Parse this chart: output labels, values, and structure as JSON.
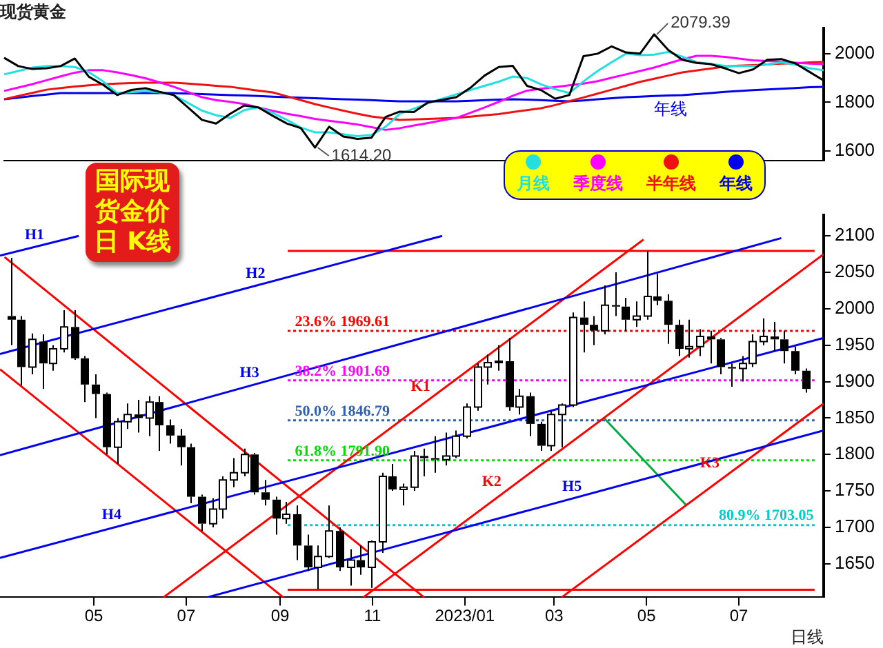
{
  "chart_data": [
    {
      "type": "line",
      "title": "现货黄金",
      "categories": [
        null,
        null,
        null,
        null,
        null,
        null,
        null,
        null,
        null,
        null,
        null,
        null,
        null,
        null,
        null,
        null,
        null,
        null,
        null,
        null,
        null,
        null,
        null,
        null,
        null,
        null,
        null,
        null,
        null,
        null,
        null,
        null,
        null,
        null,
        null,
        null,
        null,
        null,
        null,
        null,
        null,
        null,
        null,
        null,
        null,
        null,
        null,
        null,
        null,
        null,
        null,
        null,
        null,
        null,
        null,
        null,
        null,
        null,
        null
      ],
      "ylim": [
        1560,
        2105
      ],
      "yticks": [
        1600,
        1800,
        2000
      ],
      "marker": "none",
      "legend": "bottom right",
      "annotations": [
        "2079.39",
        "1614.20",
        "年线"
      ],
      "series": [
        {
          "color": "#000000",
          "values": [
            1983,
            1949,
            1937,
            1940,
            1949,
            1980,
            1905,
            1872,
            1830,
            1851,
            1858,
            1843,
            1830,
            1780,
            1728,
            1713,
            1753,
            1787,
            1779,
            1745,
            1713,
            1694,
            1614.2,
            1700,
            1660,
            1650,
            1655,
            1740,
            1762,
            1760,
            1800,
            1810,
            1821,
            1860,
            1910,
            1945,
            1950,
            1868,
            1850,
            1815,
            1830,
            1990,
            2000,
            2030,
            2005,
            2000,
            2079.39,
            2015,
            1975,
            1962,
            1957,
            1940,
            1920,
            1935,
            1975,
            1978,
            1960,
            1925,
            1890
          ]
        },
        {
          "name": "月线",
          "color": "#22e0e0",
          "values": [
            1915,
            1929,
            1943,
            1949,
            1949,
            1945,
            1924,
            1886,
            1838,
            1842,
            1846,
            1841,
            1830,
            1798,
            1766,
            1747,
            1736,
            1768,
            1779,
            1757,
            1728,
            1696,
            1677,
            1677,
            1669,
            1661,
            1666,
            1700,
            1753,
            1774,
            1796,
            1815,
            1833,
            1851,
            1868,
            1885,
            1906,
            1900,
            1874,
            1854,
            1838,
            1886,
            1929,
            1965,
            2000,
            1994,
            1996,
            2007,
            1988,
            1965,
            1958,
            1950,
            1949,
            1949,
            1956,
            1964,
            1955,
            1940,
            1932
          ]
        },
        {
          "name": "季度线",
          "color": "#ff00ff",
          "values": [
            1847,
            1861,
            1875,
            1891,
            1907,
            1922,
            1932,
            1932,
            1923,
            1912,
            1899,
            1882,
            1864,
            1843,
            1821,
            1809,
            1802,
            1793,
            1779,
            1765,
            1753,
            1743,
            1732,
            1724,
            1717,
            1709,
            1698,
            1687,
            1694,
            1705,
            1715,
            1726,
            1736,
            1757,
            1779,
            1802,
            1827,
            1848,
            1856,
            1863,
            1870,
            1877,
            1887,
            1901,
            1915,
            1929,
            1943,
            1960,
            1977,
            1991,
            1991,
            1987,
            1980,
            1973,
            1970,
            1967,
            1963,
            1959,
            1957
          ]
        },
        {
          "name": "半年线",
          "color": "#ee1111",
          "values": [
            1813,
            1826,
            1839,
            1852,
            1859,
            1865,
            1870,
            1874,
            1877,
            1879,
            1881,
            1881,
            1881,
            1877,
            1873,
            1868,
            1864,
            1856,
            1848,
            1841,
            1825,
            1809,
            1793,
            1779,
            1766,
            1753,
            1742,
            1735,
            1728,
            1730,
            1732,
            1734,
            1736,
            1741,
            1747,
            1752,
            1760,
            1768,
            1776,
            1789,
            1805,
            1820,
            1836,
            1852,
            1868,
            1884,
            1897,
            1910,
            1923,
            1931,
            1939,
            1947,
            1951,
            1953,
            1956,
            1959,
            1961,
            1964,
            1966
          ]
        },
        {
          "name": "年线",
          "color": "#0000ee",
          "values": [
            1813,
            1819,
            1826,
            1832,
            1838,
            1838,
            1838,
            1838,
            1838,
            1838,
            1838,
            1838,
            1838,
            1836,
            1834,
            1832,
            1830,
            1828,
            1826,
            1823,
            1821,
            1819,
            1817,
            1815,
            1813,
            1811,
            1809,
            1806,
            1804,
            1804,
            1804,
            1804,
            1804,
            1806,
            1809,
            1811,
            1813,
            1811,
            1809,
            1806,
            1804,
            1808,
            1813,
            1817,
            1821,
            1823,
            1826,
            1828,
            1830,
            1834,
            1838,
            1843,
            1847,
            1850,
            1853,
            1856,
            1859,
            1862,
            1864
          ]
        }
      ]
    },
    {
      "type": "candlestick",
      "title": "国际现货金价日 K线",
      "xlabel": "日线",
      "marker": "none",
      "colors": [
        "#000000",
        "#000000",
        "#ffffff",
        "#000000",
        "#ffffff",
        "#ffffff",
        "#000000",
        "#000000",
        "#000000",
        "#000000",
        "#ffffff",
        "#ffffff",
        "#000000",
        "#ffffff",
        "#000000",
        "#000000",
        "#000000",
        "#000000",
        "#000000",
        "#ffffff",
        "#ffffff",
        "#ffffff",
        "#ffffff",
        "#000000",
        "#000000",
        "#000000",
        "#ffffff",
        "#000000",
        "#000000",
        "#ffffff",
        "#ffffff",
        "#000000",
        "#ffffff",
        "#000000",
        "#ffffff",
        "#ffffff",
        "#000000",
        "#ffffff",
        "#ffffff",
        "#000000",
        "#000000",
        "#ffffff",
        "#ffffff",
        "#ffffff",
        "#ffffff",
        "#ffffff",
        "#ffffff",
        "#000000",
        "#ffffff",
        "#000000",
        "#000000",
        "#ffffff",
        "#ffffff",
        "#ffffff",
        "#000000",
        "#000000",
        "#ffffff",
        "#000000",
        "#000000",
        "#ffffff",
        "#ffffff",
        "#000000",
        "#000000",
        "#000000",
        "#ffffff",
        "#ffffff",
        "#000000",
        "#000000",
        "#000000",
        "#ffffff",
        "#ffffff",
        "#ffffff",
        "#000000",
        "#000000",
        "#000000",
        "#000000"
      ],
      "xlim": [
        "2022-02-28",
        "2023-08-26"
      ],
      "ylim": [
        1604,
        2129
      ],
      "xticks": [
        {
          "value": "2022-05-01",
          "label": "05"
        },
        {
          "value": "2022-07-01",
          "label": "07"
        },
        {
          "value": "2022-09-01",
          "label": "09"
        },
        {
          "value": "2022-11-01",
          "label": "11"
        },
        {
          "value": "2023-01-01",
          "label": "2023/01"
        },
        {
          "value": "2023-03-01",
          "label": "03"
        },
        {
          "value": "2023-05-01",
          "label": "05"
        },
        {
          "value": "2023-07-01",
          "label": "07"
        }
      ],
      "yticks": [
        1650,
        1700,
        1750,
        1800,
        1850,
        1900,
        1950,
        2000,
        2050,
        2100
      ],
      "x": [
        "2022-03-07",
        "2022-03-14",
        "2022-03-21",
        "2022-03-28",
        "2022-04-04",
        "2022-04-11",
        "2022-04-18",
        "2022-04-25",
        "2022-05-02",
        "2022-05-09",
        "2022-05-16",
        "2022-05-23",
        "2022-05-30",
        "2022-06-06",
        "2022-06-13",
        "2022-06-20",
        "2022-06-27",
        "2022-07-04",
        "2022-07-11",
        "2022-07-18",
        "2022-07-25",
        "2022-08-01",
        "2022-08-08",
        "2022-08-15",
        "2022-08-22",
        "2022-08-29",
        "2022-09-05",
        "2022-09-12",
        "2022-09-19",
        "2022-09-26",
        "2022-10-03",
        "2022-10-10",
        "2022-10-17",
        "2022-10-24",
        "2022-10-31",
        "2022-11-07",
        "2022-11-14",
        "2022-11-21",
        "2022-11-28",
        "2022-12-05",
        "2022-12-12",
        "2022-12-19",
        "2022-12-26",
        "2023-01-02",
        "2023-01-09",
        "2023-01-16",
        "2023-01-23",
        "2023-01-30",
        "2023-02-06",
        "2023-02-13",
        "2023-02-20",
        "2023-02-27",
        "2023-03-06",
        "2023-03-13",
        "2023-03-20",
        "2023-03-27",
        "2023-04-03",
        "2023-04-10",
        "2023-04-17",
        "2023-04-24",
        "2023-05-01",
        "2023-05-08",
        "2023-05-15",
        "2023-05-22",
        "2023-05-29",
        "2023-06-05",
        "2023-06-12",
        "2023-06-19",
        "2023-06-26",
        "2023-07-03",
        "2023-07-10",
        "2023-07-17",
        "2023-07-24",
        "2023-07-31",
        "2023-08-07",
        "2023-08-14"
      ],
      "ohlc": [
        [
          1990,
          2070,
          1950,
          1985
        ],
        [
          1985,
          1990,
          1895,
          1920
        ],
        [
          1920,
          1966,
          1910,
          1958
        ],
        [
          1955,
          1965,
          1890,
          1925
        ],
        [
          1925,
          1950,
          1915,
          1945
        ],
        [
          1945,
          1998,
          1940,
          1975
        ],
        [
          1975,
          1998,
          1930,
          1932
        ],
        [
          1932,
          1935,
          1872,
          1896
        ],
        [
          1896,
          1910,
          1850,
          1883
        ],
        [
          1883,
          1885,
          1800,
          1810
        ],
        [
          1810,
          1850,
          1787,
          1845
        ],
        [
          1845,
          1870,
          1835,
          1855
        ],
        [
          1855,
          1875,
          1830,
          1850
        ],
        [
          1850,
          1880,
          1825,
          1872
        ],
        [
          1872,
          1880,
          1805,
          1840
        ],
        [
          1840,
          1848,
          1815,
          1826
        ],
        [
          1826,
          1835,
          1785,
          1810
        ],
        [
          1810,
          1815,
          1733,
          1742
        ],
        [
          1742,
          1745,
          1695,
          1705
        ],
        [
          1705,
          1740,
          1700,
          1725
        ],
        [
          1725,
          1770,
          1712,
          1765
        ],
        [
          1765,
          1795,
          1755,
          1775
        ],
        [
          1775,
          1808,
          1770,
          1800
        ],
        [
          1800,
          1802,
          1745,
          1748
        ],
        [
          1748,
          1765,
          1730,
          1738
        ],
        [
          1738,
          1742,
          1690,
          1712
        ],
        [
          1712,
          1735,
          1705,
          1718
        ],
        [
          1718,
          1730,
          1655,
          1675
        ],
        [
          1675,
          1690,
          1640,
          1645
        ],
        [
          1645,
          1675,
          1615,
          1660
        ],
        [
          1660,
          1730,
          1658,
          1695
        ],
        [
          1695,
          1700,
          1640,
          1645
        ],
        [
          1645,
          1670,
          1620,
          1655
        ],
        [
          1655,
          1675,
          1635,
          1645
        ],
        [
          1645,
          1682,
          1617,
          1680
        ],
        [
          1680,
          1775,
          1665,
          1770
        ],
        [
          1770,
          1787,
          1750,
          1752
        ],
        [
          1752,
          1760,
          1730,
          1755
        ],
        [
          1755,
          1805,
          1750,
          1798
        ],
        [
          1798,
          1808,
          1770,
          1795
        ],
        [
          1795,
          1825,
          1775,
          1793
        ],
        [
          1793,
          1830,
          1785,
          1798
        ],
        [
          1798,
          1833,
          1795,
          1825
        ],
        [
          1825,
          1870,
          1822,
          1865
        ],
        [
          1865,
          1925,
          1860,
          1920
        ],
        [
          1920,
          1937,
          1896,
          1926
        ],
        [
          1926,
          1950,
          1915,
          1928
        ],
        [
          1928,
          1960,
          1860,
          1865
        ],
        [
          1865,
          1890,
          1855,
          1880
        ],
        [
          1880,
          1885,
          1825,
          1842
        ],
        [
          1842,
          1845,
          1805,
          1812
        ],
        [
          1812,
          1860,
          1805,
          1855
        ],
        [
          1855,
          1870,
          1810,
          1868
        ],
        [
          1868,
          1995,
          1865,
          1988
        ],
        [
          1988,
          2010,
          1940,
          1978
        ],
        [
          1978,
          1990,
          1950,
          1970
        ],
        [
          1970,
          2032,
          1965,
          2005
        ],
        [
          2005,
          2050,
          1990,
          2003
        ],
        [
          2003,
          2015,
          1970,
          1985
        ],
        [
          1985,
          2010,
          1975,
          1990
        ],
        [
          1990,
          2079,
          1985,
          2017
        ],
        [
          2017,
          2048,
          2005,
          2011
        ],
        [
          2011,
          2020,
          1952,
          1978
        ],
        [
          1978,
          1985,
          1935,
          1945
        ],
        [
          1945,
          1985,
          1933,
          1948
        ],
        [
          1948,
          1972,
          1935,
          1962
        ],
        [
          1962,
          1970,
          1925,
          1958
        ],
        [
          1958,
          1960,
          1910,
          1920
        ],
        [
          1920,
          1925,
          1893,
          1918
        ],
        [
          1918,
          1935,
          1900,
          1925
        ],
        [
          1925,
          1965,
          1920,
          1955
        ],
        [
          1955,
          1987,
          1950,
          1962
        ],
        [
          1962,
          1982,
          1942,
          1958
        ],
        [
          1958,
          1970,
          1925,
          1942
        ],
        [
          1942,
          1948,
          1910,
          1915
        ],
        [
          1915,
          1918,
          1885,
          1890
        ]
      ],
      "series": [
        {
          "type": "line",
          "color": "#0000ee",
          "x": [
            "2022-02-28",
            "2022-04-21"
          ],
          "values": [
            2073,
            2100
          ]
        },
        {
          "type": "line",
          "color": "#0000ee",
          "x": [
            "2022-02-28",
            "2022-12-17"
          ],
          "values": [
            1938,
            2100
          ]
        },
        {
          "type": "line",
          "color": "#0000ee",
          "x": [
            "2022-02-28",
            "2023-07-29"
          ],
          "values": [
            1799,
            2097
          ]
        },
        {
          "type": "line",
          "color": "#0000ee",
          "x": [
            "2022-02-28",
            "2023-08-26"
          ],
          "values": [
            1658,
            1960
          ]
        },
        {
          "type": "line",
          "color": "#0000ee",
          "x": [
            "2022-07-15",
            "2023-08-26"
          ],
          "values": [
            1604,
            1833
          ]
        },
        {
          "type": "line",
          "color": "#ff0000",
          "x": [
            "2022-03-03",
            "2022-12-05"
          ],
          "values": [
            2071,
            1604
          ]
        },
        {
          "type": "line",
          "color": "#ff0000",
          "x": [
            "2022-02-28",
            "2022-09-03"
          ],
          "values": [
            1917,
            1604
          ]
        },
        {
          "type": "line",
          "color": "#ff0000",
          "x": [
            "2022-06-16",
            "2023-04-29"
          ],
          "values": [
            1604,
            2095
          ]
        },
        {
          "type": "line",
          "color": "#ff0000",
          "x": [
            "2022-10-26",
            "2023-08-26"
          ],
          "values": [
            1604,
            2075
          ]
        },
        {
          "type": "line",
          "color": "#ff0000",
          "x": [
            "2023-03-06",
            "2023-08-26"
          ],
          "values": [
            1604,
            1870
          ]
        },
        {
          "type": "line",
          "color": "#00aa44",
          "x": [
            "2023-04-03",
            "2023-05-27"
          ],
          "values": [
            1850,
            1731
          ]
        },
        {
          "type": "line",
          "color": "#ff0000",
          "x": [
            "2022-09-06",
            "2023-08-20"
          ],
          "values": [
            2079.39,
            2079.39
          ]
        },
        {
          "type": "line",
          "color": "#ff0000",
          "x": [
            "2022-09-06",
            "2023-08-20"
          ],
          "values": [
            1614.2,
            1614.2
          ]
        },
        {
          "type": "line",
          "color": "#ff0000",
          "line_style": "dotted",
          "x": [
            "2022-09-06",
            "2023-08-20"
          ],
          "values": [
            1969.61,
            1969.61
          ]
        },
        {
          "type": "line",
          "color": "#ff00ff",
          "line_style": "dotted",
          "x": [
            "2022-09-06",
            "2023-08-20"
          ],
          "values": [
            1901.69,
            1901.69
          ]
        },
        {
          "type": "line",
          "color": "#3060b0",
          "line_style": "dotted",
          "x": [
            "2022-09-06",
            "2023-08-20"
          ],
          "values": [
            1846.79,
            1846.79
          ]
        },
        {
          "type": "line",
          "color": "#00dd00",
          "line_style": "dotted",
          "x": [
            "2022-09-06",
            "2023-08-20"
          ],
          "values": [
            1791.9,
            1791.9
          ]
        },
        {
          "type": "line",
          "color": "#00cccc",
          "line_style": "dotted",
          "x": [
            "2022-09-06",
            "2023-08-20"
          ],
          "values": [
            1703.05,
            1703.05
          ]
        }
      ],
      "annotations": [
        {
          "text": "H1",
          "x": "2022-03-31",
          "y": 2089
        },
        {
          "text": "H2",
          "x": "2022-08-24",
          "y": 2036
        },
        {
          "text": "H3",
          "x": "2022-08-20",
          "y": 1899
        },
        {
          "text": "H4",
          "x": "2022-05-21",
          "y": 1704
        },
        {
          "text": "H5",
          "x": "2023-03-21",
          "y": 1743
        },
        {
          "text": "K1",
          "x": "2022-12-11",
          "y": 1880
        },
        {
          "text": "K2",
          "x": "2023-01-27",
          "y": 1750
        },
        {
          "text": "K3",
          "x": "2023-06-20",
          "y": 1775
        },
        {
          "text": "23.6% 1969.61",
          "x": "2022-09-08",
          "y": 1969.61
        },
        {
          "text": "38.2% 1901.69",
          "x": "2022-09-08",
          "y": 1901.69
        },
        {
          "text": "50.0% 1846.79",
          "x": "2022-09-08",
          "y": 1846.79
        },
        {
          "text": "61.8% 1791.90",
          "x": "2022-09-08",
          "y": 1791.9
        },
        {
          "text": "80.9% 1703.05",
          "x": "2023-06-15",
          "y": 1703.05
        }
      ]
    }
  ]
}
